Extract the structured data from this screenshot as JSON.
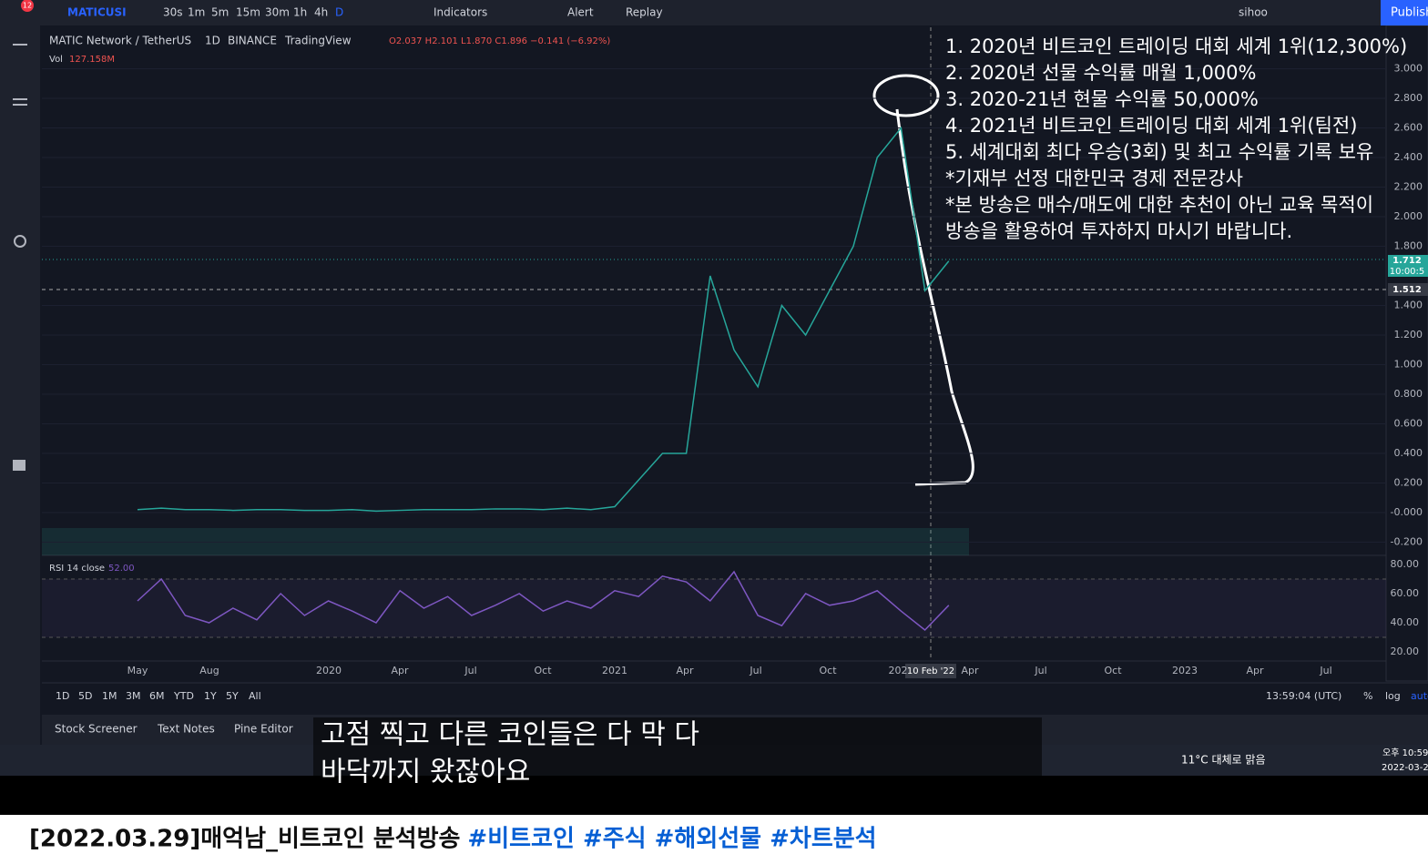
{
  "toolbar": {
    "badge": "12",
    "symbol": "MATICUSI",
    "intervals": [
      "30s",
      "1m",
      "5m",
      "15m",
      "30m",
      "1h",
      "4h",
      "D"
    ],
    "indicators": "Indicators",
    "alert": "Alert",
    "replay": "Replay",
    "user": "sihoo",
    "publish": "Publish"
  },
  "chart_data": {
    "type": "line",
    "pair": "MATIC Network / TetherUS",
    "interval": "1D",
    "exchange": "BINANCE",
    "source": "TradingView",
    "ohlc": "O2.037 H2.101 L1.870 C1.896 −0.141 (−6.92%)",
    "volume_label": "Vol",
    "volume_value": "127.158M",
    "rsi_label": "RSI 14 close",
    "rsi_value": "52.00",
    "color": "#26a69a",
    "rsi_color": "#7e57c2",
    "ylim": [
      -0.2,
      3.0
    ],
    "yticks": [
      {
        "value": 3.0,
        "label": "3.000"
      },
      {
        "value": 2.8,
        "label": "2.800"
      },
      {
        "value": 2.6,
        "label": "2.600"
      },
      {
        "value": 2.4,
        "label": "2.400"
      },
      {
        "value": 2.2,
        "label": "2.200"
      },
      {
        "value": 2.0,
        "label": "2.000"
      },
      {
        "value": 1.8,
        "label": "1.800"
      },
      {
        "value": 1.4,
        "label": "1.400"
      },
      {
        "value": 1.2,
        "label": "1.200"
      },
      {
        "value": 1.0,
        "label": "1.000"
      },
      {
        "value": 0.8,
        "label": "0.800"
      },
      {
        "value": 0.6,
        "label": "0.600"
      },
      {
        "value": 0.4,
        "label": "0.400"
      },
      {
        "value": 0.2,
        "label": "0.200"
      },
      {
        "value": 0,
        "label": "-0.000"
      },
      {
        "value": -0.2,
        "label": "-0.200"
      }
    ],
    "price_labels": [
      {
        "value": 1.712,
        "label": "1.712"
      },
      {
        "value": 1.512,
        "label": "1.512"
      }
    ],
    "countdown": "10:00:5",
    "rsi_ylim": [
      20,
      80
    ],
    "rsi_yticks": [
      {
        "value": 80,
        "label": "80.00"
      },
      {
        "value": 60,
        "label": "60.00"
      },
      {
        "value": 40,
        "label": "40.00"
      },
      {
        "value": 20,
        "label": "20.00"
      }
    ],
    "x_labels": [
      "May",
      "Aug",
      "2020",
      "Apr",
      "Jul",
      "Oct",
      "2021",
      "Apr",
      "Jul",
      "Oct",
      "202",
      "10 Feb '22",
      "Apr",
      "Jul",
      "Oct",
      "2023",
      "Apr",
      "Jul"
    ],
    "values": [
      0.02,
      0.03,
      0.02,
      0.02,
      0.015,
      0.02,
      0.02,
      0.015,
      0.015,
      0.02,
      0.01,
      0.015,
      0.02,
      0.02,
      0.02,
      0.025,
      0.025,
      0.02,
      0.03,
      0.02,
      0.04,
      0.22,
      0.4,
      0.4,
      1.6,
      1.1,
      0.85,
      1.4,
      1.2,
      1.5,
      1.8,
      2.4,
      2.6,
      1.5,
      1.7
    ],
    "rsi_values": [
      55,
      70,
      45,
      40,
      50,
      42,
      60,
      45,
      55,
      48,
      40,
      62,
      50,
      58,
      45,
      52,
      60,
      48,
      55,
      50,
      62,
      58,
      72,
      68,
      55,
      75,
      45,
      38,
      60,
      52,
      55,
      62,
      48,
      35,
      52
    ]
  },
  "range_bar": {
    "ranges": [
      "1D",
      "5D",
      "1M",
      "3M",
      "6M",
      "YTD",
      "1Y",
      "5Y",
      "All"
    ],
    "clock": "13:59:04 (UTC)",
    "percent": "%",
    "log": "log",
    "auto": "auto"
  },
  "tabs": [
    "Stock Screener",
    "Text Notes",
    "Pine Editor"
  ],
  "overlay_text": [
    "1. 2020년 비트코인 트레이딩 대회 세계 1위(12,300%)",
    "2. 2020년 선물 수익률 매월 1,000%",
    "3. 2020-21년 현물 수익률 50,000%",
    "4. 2021년 비트코인 트레이딩 대회 세계 1위(팀전)",
    "5. 세계대회 최다 우승(3회) 및 최고 수익률 기록 보유",
    "*기재부 선정 대한민국 경제 전문강사",
    "*본 방송은 매수/매도에 대한 추천이 아닌 교육 목적이",
    " 방송을 활용하여 투자하지 마시기 바랍니다."
  ],
  "subtitle": [
    "고점 찍고 다른 코인들은 다 막 다",
    "바닥까지 왔잖아요"
  ],
  "taskbar": {
    "weather": "11°C 대체로 맑음",
    "time": "오후 10:59",
    "date": "2022-03-2"
  },
  "video_title": {
    "title": "[2022.03.29]매억남_비트코인 분석방송",
    "hashtags": "#비트코인 #주식 #해외선물 #차트분석"
  }
}
